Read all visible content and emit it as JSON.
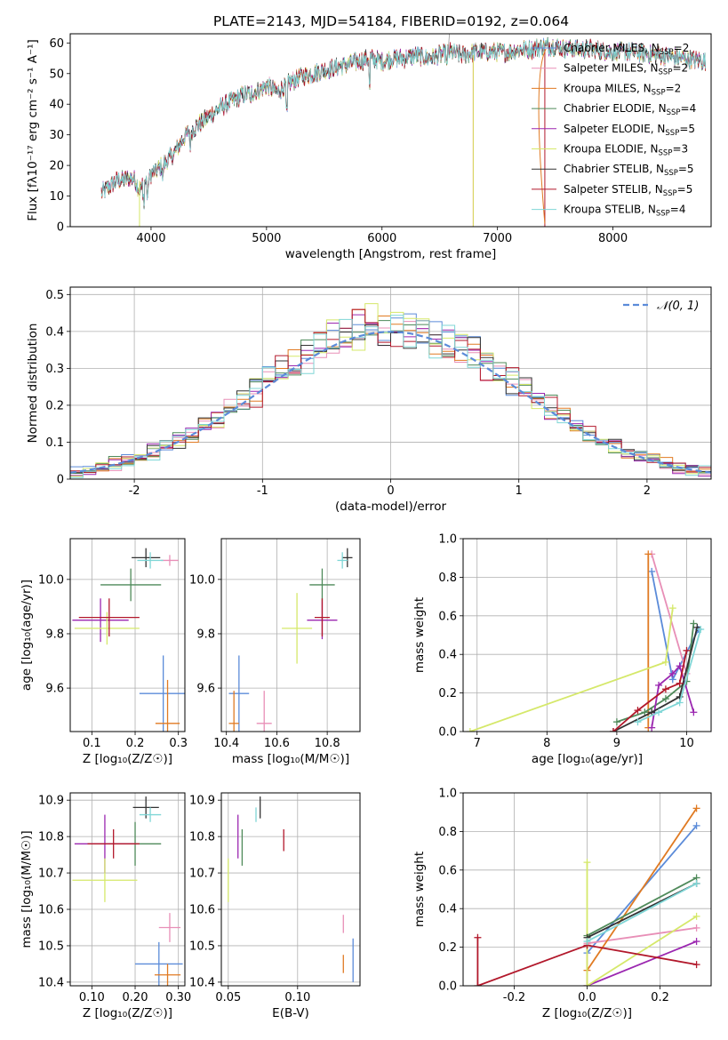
{
  "figure": {
    "title": "PLATE=2143, MJD=54184, FIBERID=0192, z=0.064"
  },
  "chart_data": [
    {
      "id": "spectrum",
      "type": "line",
      "xlabel": "wavelength [Angstrom, rest frame]",
      "ylabel": "Flux [fλ10⁻¹⁷ erg cm⁻² s⁻¹ A⁻¹]",
      "xlim": [
        3300,
        8850
      ],
      "ylim": [
        0,
        63
      ],
      "xticks": [
        4000,
        5000,
        6000,
        7000,
        8000
      ],
      "yticks": [
        0,
        10,
        20,
        30,
        40,
        50,
        60
      ],
      "grid": false,
      "legend_position": "upper-right",
      "continuum": {
        "x": [
          3570,
          3700,
          3850,
          3900,
          4000,
          4100,
          4200,
          4300,
          4400,
          4500,
          4600,
          4700,
          4800,
          4900,
          5000,
          5100,
          5200,
          5300,
          5400,
          5500,
          5600,
          5700,
          5800,
          5900,
          6000,
          6100,
          6200,
          6300,
          6400,
          6500,
          6600,
          6700,
          6800,
          6900,
          7000,
          7100,
          7200,
          7300,
          7400,
          7500,
          7600,
          7800,
          8000,
          8200,
          8400,
          8600,
          8800
        ],
        "y": [
          11,
          15,
          16,
          12,
          17,
          20,
          24,
          30,
          33,
          36,
          39,
          41,
          43,
          44,
          46,
          44,
          47,
          49,
          50,
          51,
          52,
          53,
          54,
          55,
          54,
          55,
          55,
          56,
          55,
          56,
          57,
          56,
          57,
          57,
          57,
          57,
          58,
          58,
          59,
          59,
          58,
          58,
          57,
          57,
          56,
          55,
          54
        ]
      },
      "series": [
        {
          "name": "Chabrier MILES, N_SSP=2",
          "color": "#5b8bd9"
        },
        {
          "name": "Salpeter MILES, N_SSP=2",
          "color": "#e88fb7"
        },
        {
          "name": "Kroupa MILES, N_SSP=2",
          "color": "#e07a22"
        },
        {
          "name": "Chabrier ELODIE, N_SSP=4",
          "color": "#4f8a5a"
        },
        {
          "name": "Salpeter ELODIE, N_SSP=5",
          "color": "#9b27b0"
        },
        {
          "name": "Kroupa ELODIE, N_SSP=3",
          "color": "#d5e86a"
        },
        {
          "name": "Chabrier STELIB, N_SSP=5",
          "color": "#333333"
        },
        {
          "name": "Salpeter STELIB, N_SSP=5",
          "color": "#b2182b"
        },
        {
          "name": "Kroupa STELIB, N_SSP=4",
          "color": "#7fd6d6"
        }
      ]
    },
    {
      "id": "residual_histogram",
      "type": "line",
      "xlabel": "(data-model)/error",
      "ylabel": "Normed distribution",
      "xlim": [
        -2.5,
        2.5
      ],
      "ylim": [
        0,
        0.52
      ],
      "xticks": [
        -2,
        -1,
        0,
        1,
        2
      ],
      "yticks": [
        0.0,
        0.1,
        0.2,
        0.3,
        0.4,
        0.5
      ],
      "grid": true,
      "legend": [
        "𝒩(0, 1)"
      ],
      "legend_position": "upper-right",
      "bin_width": 0.1
    },
    {
      "id": "age_vs_Z",
      "type": "scatter",
      "xlabel": "Z [log₁₀(Z/Z☉)]",
      "ylabel": "age  [log₁₀(age/yr)]",
      "xlim": [
        0.05,
        0.315
      ],
      "ylim": [
        9.44,
        10.15
      ],
      "xticks": [
        0.1,
        0.2,
        0.3
      ],
      "yticks": [
        9.6,
        9.8,
        10.0
      ],
      "grid": true,
      "points": [
        {
          "series": "Chabrier MILES",
          "x": 0.265,
          "y": 9.58,
          "xerr": 0.055,
          "yerr": 0.14
        },
        {
          "series": "Salpeter MILES",
          "x": 0.28,
          "y": 10.07,
          "xerr": 0.02,
          "yerr": 0.02
        },
        {
          "series": "Kroupa MILES",
          "x": 0.275,
          "y": 9.47,
          "xerr": 0.028,
          "yerr": 0.16
        },
        {
          "series": "Chabrier ELODIE",
          "x": 0.19,
          "y": 9.98,
          "xerr": 0.07,
          "yerr": 0.06
        },
        {
          "series": "Salpeter ELODIE",
          "x": 0.12,
          "y": 9.85,
          "xerr": 0.065,
          "yerr": 0.08
        },
        {
          "series": "Kroupa ELODIE",
          "x": 0.135,
          "y": 9.82,
          "xerr": 0.075,
          "yerr": 0.06
        },
        {
          "series": "Chabrier STELIB",
          "x": 0.225,
          "y": 10.08,
          "xerr": 0.033,
          "yerr": 0.035
        },
        {
          "series": "Salpeter STELIB",
          "x": 0.14,
          "y": 9.86,
          "xerr": 0.07,
          "yerr": 0.07
        },
        {
          "series": "Kroupa STELIB",
          "x": 0.235,
          "y": 10.07,
          "xerr": 0.03,
          "yerr": 0.03
        }
      ]
    },
    {
      "id": "age_vs_mass",
      "type": "scatter",
      "xlabel": "mass [log₁₀(M/M☉)]",
      "ylabel": "",
      "xlim": [
        10.38,
        10.93
      ],
      "ylim": [
        9.44,
        10.15
      ],
      "xticks": [
        10.4,
        10.6,
        10.8
      ],
      "yticks": [
        9.6,
        9.8,
        10.0
      ],
      "grid": true,
      "points": [
        {
          "series": "Chabrier MILES",
          "x": 10.45,
          "y": 9.58,
          "xerr": 0.04,
          "yerr": 0.14
        },
        {
          "series": "Salpeter MILES",
          "x": 10.55,
          "y": 9.47,
          "xerr": 0.03,
          "yerr": 0.12
        },
        {
          "series": "Kroupa MILES",
          "x": 10.43,
          "y": 9.47,
          "xerr": 0.02,
          "yerr": 0.12
        },
        {
          "series": "Chabrier ELODIE",
          "x": 10.78,
          "y": 9.98,
          "xerr": 0.05,
          "yerr": 0.06
        },
        {
          "series": "Salpeter ELODIE",
          "x": 10.78,
          "y": 9.85,
          "xerr": 0.06,
          "yerr": 0.07
        },
        {
          "series": "Kroupa ELODIE",
          "x": 10.68,
          "y": 9.82,
          "xerr": 0.06,
          "yerr": 0.13
        },
        {
          "series": "Chabrier STELIB",
          "x": 10.88,
          "y": 10.08,
          "xerr": 0.02,
          "yerr": 0.035
        },
        {
          "series": "Salpeter STELIB",
          "x": 10.78,
          "y": 9.86,
          "xerr": 0.03,
          "yerr": 0.07
        },
        {
          "series": "Kroupa STELIB",
          "x": 10.86,
          "y": 10.07,
          "xerr": 0.02,
          "yerr": 0.03
        }
      ]
    },
    {
      "id": "weight_vs_age",
      "type": "line",
      "xlabel": "age  [log₁₀(age/yr)]",
      "ylabel": "mass weight",
      "xlim": [
        6.8,
        10.35
      ],
      "ylim": [
        0,
        1.0
      ],
      "xticks": [
        7,
        8,
        9,
        10
      ],
      "yticks": [
        0.0,
        0.2,
        0.4,
        0.6,
        0.8,
        1.0
      ],
      "grid": true,
      "series": [
        {
          "name": "Chabrier MILES",
          "x": [
            9.5,
            9.8,
            10.17
          ],
          "y": [
            0.83,
            0.27,
            0.53
          ]
        },
        {
          "name": "Salpeter MILES",
          "x": [
            9.5,
            10.0
          ],
          "y": [
            0.92,
            0.3
          ]
        },
        {
          "name": "Kroupa MILES",
          "x": [
            9.45,
            9.45
          ],
          "y": [
            0.92,
            0.02
          ]
        },
        {
          "name": "Chabrier ELODIE",
          "x": [
            9.0,
            9.4,
            9.7,
            10.0,
            10.1
          ],
          "y": [
            0.05,
            0.1,
            0.17,
            0.26,
            0.56
          ]
        },
        {
          "name": "Salpeter ELODIE",
          "x": [
            9.5,
            9.6,
            9.8,
            9.9,
            10.1
          ],
          "y": [
            0.02,
            0.24,
            0.3,
            0.34,
            0.1
          ]
        },
        {
          "name": "Kroupa ELODIE",
          "x": [
            6.9,
            9.7,
            9.8
          ],
          "y": [
            0.0,
            0.36,
            0.64
          ]
        },
        {
          "name": "Chabrier STELIB",
          "x": [
            8.95,
            9.5,
            9.9,
            10.15
          ],
          "y": [
            0.0,
            0.1,
            0.18,
            0.54
          ]
        },
        {
          "name": "Salpeter STELIB",
          "x": [
            8.95,
            9.3,
            9.7,
            9.9,
            10.0
          ],
          "y": [
            0.0,
            0.11,
            0.22,
            0.25,
            0.42
          ]
        },
        {
          "name": "Kroupa STELIB",
          "x": [
            9.3,
            9.6,
            9.9,
            10.2
          ],
          "y": [
            0.05,
            0.1,
            0.15,
            0.53
          ]
        }
      ]
    },
    {
      "id": "mass_vs_Z",
      "type": "scatter",
      "xlabel": "Z [log₁₀(Z/Z☉)]",
      "ylabel": "mass [log₁₀(M/M☉)]",
      "xlim": [
        0.05,
        0.315
      ],
      "ylim": [
        10.39,
        10.92
      ],
      "xticks": [
        0.1,
        0.2,
        0.3
      ],
      "yticks": [
        10.4,
        10.5,
        10.6,
        10.7,
        10.8,
        10.9
      ],
      "grid": true,
      "points": [
        {
          "series": "Chabrier MILES",
          "x": 0.255,
          "y": 10.45,
          "xerr": 0.055,
          "yerr": 0.06
        },
        {
          "series": "Salpeter MILES",
          "x": 0.28,
          "y": 10.55,
          "xerr": 0.025,
          "yerr": 0.04
        },
        {
          "series": "Kroupa MILES",
          "x": 0.275,
          "y": 10.42,
          "xerr": 0.03,
          "yerr": 0.03
        },
        {
          "series": "Chabrier ELODIE",
          "x": 0.2,
          "y": 10.78,
          "xerr": 0.06,
          "yerr": 0.06
        },
        {
          "series": "Salpeter ELODIE",
          "x": 0.13,
          "y": 10.78,
          "xerr": 0.07,
          "yerr": 0.08
        },
        {
          "series": "Kroupa ELODIE",
          "x": 0.13,
          "y": 10.68,
          "xerr": 0.075,
          "yerr": 0.06
        },
        {
          "series": "Chabrier STELIB",
          "x": 0.225,
          "y": 10.88,
          "xerr": 0.03,
          "yerr": 0.03
        },
        {
          "series": "Salpeter STELIB",
          "x": 0.15,
          "y": 10.78,
          "xerr": 0.06,
          "yerr": 0.04
        },
        {
          "series": "Kroupa STELIB",
          "x": 0.235,
          "y": 10.86,
          "xerr": 0.025,
          "yerr": 0.02
        }
      ]
    },
    {
      "id": "mass_vs_EBV",
      "type": "scatter",
      "xlabel": "E(B-V)",
      "ylabel": "",
      "xlim": [
        0.045,
        0.145
      ],
      "ylim": [
        10.39,
        10.92
      ],
      "xticks": [
        0.05,
        0.1
      ],
      "yticks": [
        10.4,
        10.5,
        10.6,
        10.7,
        10.8,
        10.9
      ],
      "grid": true,
      "points": [
        {
          "series": "Chabrier MILES",
          "x": 0.14,
          "y": 10.46,
          "xerr": 0,
          "yerr": 0.06
        },
        {
          "series": "Salpeter MILES",
          "x": 0.133,
          "y": 10.56,
          "xerr": 0,
          "yerr": 0.025
        },
        {
          "series": "Kroupa MILES",
          "x": 0.133,
          "y": 10.45,
          "xerr": 0,
          "yerr": 0.025
        },
        {
          "series": "Chabrier ELODIE",
          "x": 0.06,
          "y": 10.77,
          "xerr": 0,
          "yerr": 0.05
        },
        {
          "series": "Salpeter ELODIE",
          "x": 0.057,
          "y": 10.8,
          "xerr": 0,
          "yerr": 0.06
        },
        {
          "series": "Kroupa ELODIE",
          "x": 0.05,
          "y": 10.68,
          "xerr": 0,
          "yerr": 0.06
        },
        {
          "series": "Chabrier STELIB",
          "x": 0.073,
          "y": 10.88,
          "xerr": 0,
          "yerr": 0.03
        },
        {
          "series": "Salpeter STELIB",
          "x": 0.09,
          "y": 10.79,
          "xerr": 0,
          "yerr": 0.03
        },
        {
          "series": "Kroupa STELIB",
          "x": 0.07,
          "y": 10.86,
          "xerr": 0,
          "yerr": 0.02
        }
      ]
    },
    {
      "id": "weight_vs_Z",
      "type": "line",
      "xlabel": "Z [log₁₀(Z/Z☉)]",
      "ylabel": "mass weight",
      "xlim": [
        -0.34,
        0.34
      ],
      "ylim": [
        0,
        1.0
      ],
      "xticks": [
        -0.2,
        0.0,
        0.2
      ],
      "yticks": [
        0.0,
        0.2,
        0.4,
        0.6,
        0.8,
        1.0
      ],
      "grid": true,
      "series": [
        {
          "name": "Chabrier MILES",
          "x": [
            0.0,
            0.3
          ],
          "y": [
            0.17,
            0.83
          ]
        },
        {
          "name": "Salpeter MILES",
          "x": [
            0.0,
            0.0,
            0.3
          ],
          "y": [
            0.0,
            0.22,
            0.3
          ]
        },
        {
          "name": "Kroupa MILES",
          "x": [
            0.0,
            0.3
          ],
          "y": [
            0.08,
            0.92
          ]
        },
        {
          "name": "Chabrier ELODIE",
          "x": [
            0.0,
            0.3
          ],
          "y": [
            0.26,
            0.56
          ]
        },
        {
          "name": "Salpeter ELODIE",
          "x": [
            0.0,
            0.3
          ],
          "y": [
            0.0,
            0.23
          ]
        },
        {
          "name": "Kroupa ELODIE",
          "x": [
            0.0,
            0.0,
            0.3
          ],
          "y": [
            0.64,
            0.0,
            0.36
          ]
        },
        {
          "name": "Chabrier STELIB",
          "x": [
            0.0,
            0.3
          ],
          "y": [
            0.25,
            0.53
          ]
        },
        {
          "name": "Salpeter STELIB",
          "x": [
            -0.3,
            -0.3,
            0.0,
            0.3
          ],
          "y": [
            0.25,
            0.0,
            0.21,
            0.11
          ]
        },
        {
          "name": "Kroupa STELIB",
          "x": [
            0.0,
            0.3
          ],
          "y": [
            0.23,
            0.53
          ]
        }
      ]
    }
  ]
}
